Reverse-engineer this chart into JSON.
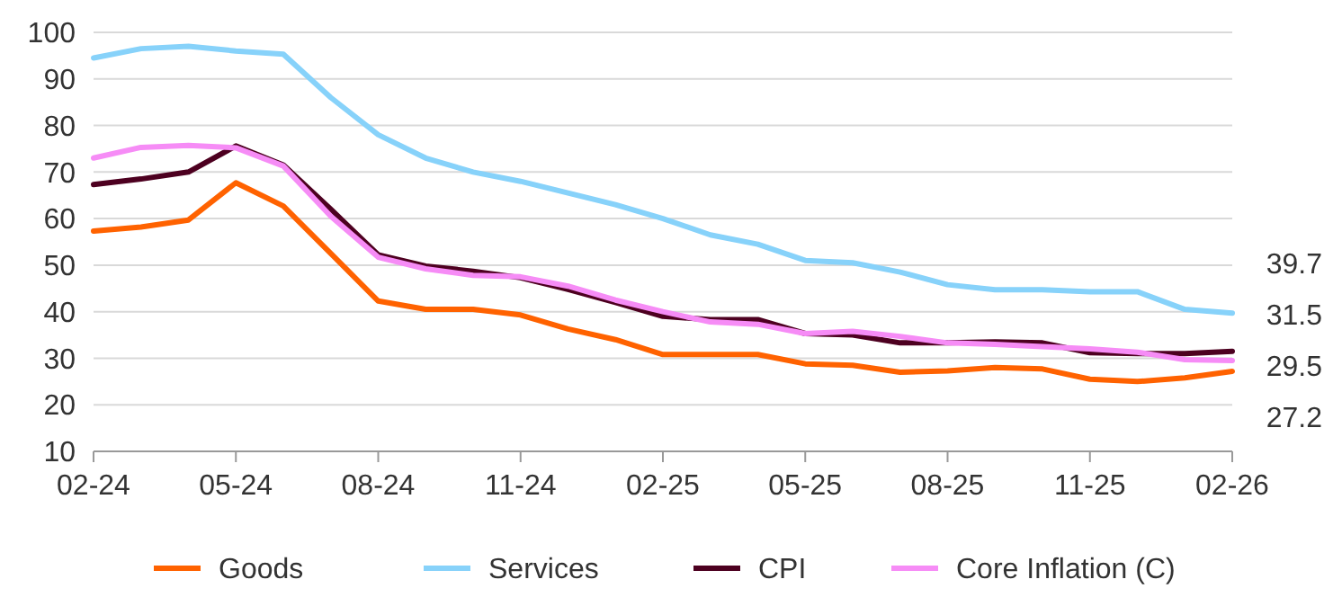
{
  "chart_data": {
    "type": "line",
    "categories": [
      "02-24",
      null,
      null,
      "05-24",
      null,
      null,
      "08-24",
      null,
      null,
      "11-24",
      null,
      null,
      "02-25",
      null,
      null,
      "05-25",
      null,
      null,
      "08-25",
      null,
      null,
      "11-25",
      null,
      null,
      "02-26"
    ],
    "series": [
      {
        "name": "Goods",
        "color": "#ff6200",
        "values": [
          57.3,
          58.2,
          59.7,
          67.7,
          62.7,
          52.5,
          42.3,
          40.5,
          40.5,
          39.3,
          36.3,
          34,
          30.8,
          30.8,
          30.8,
          28.8,
          28.5,
          27,
          27.3,
          28,
          27.7,
          25.5,
          25,
          25.8,
          27.2
        ]
      },
      {
        "name": "Services",
        "color": "#87d2fa",
        "values": [
          94.5,
          96.5,
          97,
          96,
          95.3,
          86,
          78,
          73,
          70,
          68,
          65.5,
          63,
          60,
          56.5,
          54.5,
          51,
          50.5,
          48.5,
          45.8,
          44.7,
          44.7,
          44.3,
          44.3,
          40.5,
          39.7
        ]
      },
      {
        "name": "CPI",
        "color": "#4d0020",
        "values": [
          67.3,
          68.5,
          70,
          75.6,
          71.5,
          62,
          52.2,
          49.8,
          48.7,
          47.3,
          44.8,
          42,
          39,
          38.3,
          38.3,
          35.3,
          35,
          33.3,
          33.3,
          33.5,
          33.3,
          31.2,
          31,
          31,
          31.5
        ]
      },
      {
        "name": "Core Inflation (C)",
        "color": "#f68cf6",
        "values": [
          73,
          75.3,
          75.7,
          75.2,
          71.3,
          60.5,
          51.7,
          49.2,
          47.8,
          47.5,
          45.5,
          42.5,
          40,
          37.8,
          37.3,
          35.3,
          35.8,
          34.7,
          33.3,
          33,
          32.5,
          32,
          31.3,
          29.7,
          29.5
        ]
      }
    ],
    "ylim": [
      10,
      100
    ],
    "yticks": [
      10,
      20,
      30,
      40,
      50,
      60,
      70,
      80,
      90,
      100
    ],
    "grid": "y",
    "legend": "bottom",
    "annotations": [
      "39.7",
      "31.5",
      "29.5",
      "27.2"
    ]
  }
}
